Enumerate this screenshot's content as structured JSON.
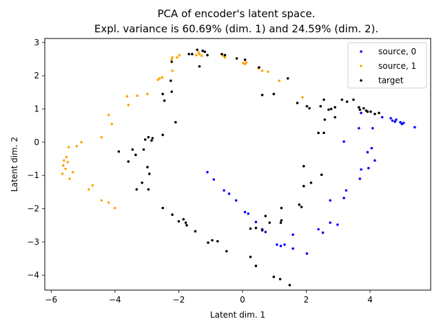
{
  "chart_data": {
    "type": "scatter",
    "title_line1": "PCA of encoder's latent space.",
    "title_line2": "Expl. variance is 60.69% (dim. 1) and 24.59% (dim. 2).",
    "xlabel": "Latent dim. 1",
    "ylabel": "Latent dim. 2",
    "xlim": [
      -6.2,
      5.9
    ],
    "ylim": [
      -4.45,
      3.12
    ],
    "xticks": [
      -6,
      -4,
      -2,
      0,
      2,
      4
    ],
    "yticks": [
      -4,
      -3,
      -2,
      -1,
      0,
      1,
      2,
      3
    ],
    "grid": false,
    "legend_position": "top-right",
    "series": [
      {
        "name": "source, 0",
        "color": "#0000ff",
        "points": [
          [
            -1.1,
            -0.9
          ],
          [
            -0.9,
            -1.12
          ],
          [
            -0.58,
            -1.45
          ],
          [
            -0.42,
            -1.55
          ],
          [
            -0.2,
            -1.75
          ],
          [
            0.08,
            -2.1
          ],
          [
            0.18,
            -2.15
          ],
          [
            0.42,
            -2.4
          ],
          [
            0.62,
            -2.62
          ],
          [
            0.72,
            -2.7
          ],
          [
            1.08,
            -3.08
          ],
          [
            1.2,
            -3.12
          ],
          [
            1.32,
            -3.08
          ],
          [
            1.58,
            -2.78
          ],
          [
            1.58,
            -3.2
          ],
          [
            2.02,
            -3.35
          ],
          [
            2.38,
            -2.62
          ],
          [
            2.52,
            -2.72
          ],
          [
            2.75,
            -2.42
          ],
          [
            2.98,
            -2.48
          ],
          [
            2.75,
            -1.75
          ],
          [
            3.18,
            -1.68
          ],
          [
            3.25,
            -1.45
          ],
          [
            3.18,
            0.02
          ],
          [
            3.68,
            -1.1
          ],
          [
            3.72,
            -0.82
          ],
          [
            3.95,
            -0.78
          ],
          [
            4.15,
            -0.55
          ],
          [
            3.92,
            -0.3
          ],
          [
            4.05,
            -0.18
          ],
          [
            4.08,
            0.42
          ],
          [
            3.65,
            0.42
          ],
          [
            3.72,
            0.88
          ],
          [
            4.38,
            0.75
          ],
          [
            4.65,
            0.72
          ],
          [
            4.7,
            0.65
          ],
          [
            4.78,
            0.62
          ],
          [
            4.82,
            0.68
          ],
          [
            4.95,
            0.6
          ],
          [
            5.0,
            0.55
          ],
          [
            5.05,
            0.58
          ],
          [
            5.4,
            0.45
          ]
        ]
      },
      {
        "name": "source, 1",
        "color": "#ffa500",
        "points": [
          [
            -5.65,
            -0.95
          ],
          [
            -5.62,
            -0.7
          ],
          [
            -5.6,
            -0.55
          ],
          [
            -5.55,
            -0.8
          ],
          [
            -5.52,
            -0.45
          ],
          [
            -5.48,
            -0.6
          ],
          [
            -5.45,
            -0.15
          ],
          [
            -5.42,
            -1.1
          ],
          [
            -5.32,
            -0.9
          ],
          [
            -5.2,
            -0.12
          ],
          [
            -5.05,
            0.0
          ],
          [
            -4.82,
            -1.42
          ],
          [
            -4.7,
            -1.3
          ],
          [
            -4.42,
            0.15
          ],
          [
            -4.42,
            -1.75
          ],
          [
            -4.2,
            -1.82
          ],
          [
            -4.2,
            0.82
          ],
          [
            -4.1,
            0.55
          ],
          [
            -4.0,
            -1.98
          ],
          [
            -3.62,
            1.38
          ],
          [
            -3.58,
            1.12
          ],
          [
            -3.3,
            1.4
          ],
          [
            -2.98,
            1.45
          ],
          [
            -2.65,
            1.88
          ],
          [
            -2.6,
            1.92
          ],
          [
            -2.52,
            1.95
          ],
          [
            -2.22,
            2.5
          ],
          [
            -2.2,
            2.15
          ],
          [
            -2.2,
            2.55
          ],
          [
            -2.05,
            2.55
          ],
          [
            -1.98,
            2.62
          ],
          [
            -1.45,
            2.62
          ],
          [
            -1.38,
            2.7
          ],
          [
            -1.35,
            2.65
          ],
          [
            -1.28,
            2.6
          ],
          [
            -0.6,
            2.6
          ],
          [
            -0.55,
            2.55
          ],
          [
            0.02,
            2.38
          ],
          [
            0.08,
            2.35
          ],
          [
            0.12,
            2.4
          ],
          [
            0.5,
            2.22
          ],
          [
            0.62,
            2.15
          ],
          [
            0.8,
            2.12
          ],
          [
            1.15,
            1.85
          ],
          [
            1.88,
            1.35
          ]
        ]
      },
      {
        "name": "target",
        "color": "#000000",
        "points": [
          [
            -1.68,
            2.65
          ],
          [
            -1.58,
            2.65
          ],
          [
            -1.42,
            2.78
          ],
          [
            -1.25,
            2.75
          ],
          [
            -1.18,
            2.72
          ],
          [
            -1.35,
            2.28
          ],
          [
            -1.1,
            2.62
          ],
          [
            -0.65,
            2.65
          ],
          [
            -0.55,
            2.62
          ],
          [
            -0.18,
            2.52
          ],
          [
            0.08,
            2.48
          ],
          [
            0.52,
            2.25
          ],
          [
            0.62,
            1.42
          ],
          [
            0.98,
            1.45
          ],
          [
            1.42,
            1.92
          ],
          [
            1.72,
            1.18
          ],
          [
            2.02,
            1.08
          ],
          [
            2.1,
            1.02
          ],
          [
            2.45,
            1.08
          ],
          [
            2.55,
            1.28
          ],
          [
            2.7,
            0.98
          ],
          [
            2.78,
            1.0
          ],
          [
            2.9,
            1.05
          ],
          [
            3.12,
            1.28
          ],
          [
            3.28,
            1.22
          ],
          [
            3.48,
            1.28
          ],
          [
            3.65,
            1.05
          ],
          [
            3.68,
            0.98
          ],
          [
            3.8,
            1.02
          ],
          [
            3.88,
            0.95
          ],
          [
            3.92,
            0.92
          ],
          [
            4.02,
            0.92
          ],
          [
            4.15,
            0.85
          ],
          [
            4.28,
            0.88
          ],
          [
            2.38,
            0.28
          ],
          [
            2.55,
            0.28
          ],
          [
            2.58,
            0.68
          ],
          [
            2.9,
            0.75
          ],
          [
            1.92,
            -0.72
          ],
          [
            2.15,
            -1.22
          ],
          [
            2.48,
            -0.98
          ],
          [
            1.92,
            -1.32
          ],
          [
            1.78,
            -1.88
          ],
          [
            1.85,
            -1.95
          ],
          [
            1.22,
            -1.98
          ],
          [
            1.22,
            -2.35
          ],
          [
            1.2,
            -2.42
          ],
          [
            0.72,
            -2.22
          ],
          [
            0.85,
            -2.42
          ],
          [
            0.42,
            -2.58
          ],
          [
            0.62,
            -2.65
          ],
          [
            0.25,
            -2.6
          ],
          [
            0.25,
            -3.45
          ],
          [
            0.42,
            -3.72
          ],
          [
            0.98,
            -4.05
          ],
          [
            1.18,
            -4.12
          ],
          [
            1.48,
            -4.3
          ],
          [
            -0.5,
            -3.28
          ],
          [
            -0.95,
            -2.95
          ],
          [
            -1.08,
            -3.02
          ],
          [
            -0.78,
            -2.98
          ],
          [
            -1.48,
            -2.68
          ],
          [
            -1.85,
            -2.32
          ],
          [
            -1.78,
            -2.42
          ],
          [
            -1.75,
            -2.5
          ],
          [
            -2.0,
            -2.38
          ],
          [
            -2.2,
            -2.18
          ],
          [
            -2.5,
            -1.98
          ],
          [
            -2.92,
            -0.95
          ],
          [
            -2.98,
            -0.75
          ],
          [
            -2.95,
            -1.42
          ],
          [
            -3.15,
            -1.22
          ],
          [
            -3.32,
            -1.42
          ],
          [
            -3.1,
            -0.22
          ],
          [
            -3.35,
            -0.38
          ],
          [
            -3.58,
            -0.58
          ],
          [
            -3.88,
            -0.28
          ],
          [
            -3.45,
            -0.22
          ],
          [
            -3.05,
            0.08
          ],
          [
            -2.95,
            0.15
          ],
          [
            -2.82,
            0.12
          ],
          [
            -2.85,
            0.05
          ],
          [
            -2.5,
            0.22
          ],
          [
            -2.1,
            0.6
          ],
          [
            -2.5,
            1.45
          ],
          [
            -2.45,
            1.25
          ],
          [
            -2.22,
            1.52
          ],
          [
            -2.25,
            1.85
          ],
          [
            -2.22,
            2.42
          ]
        ]
      }
    ]
  }
}
